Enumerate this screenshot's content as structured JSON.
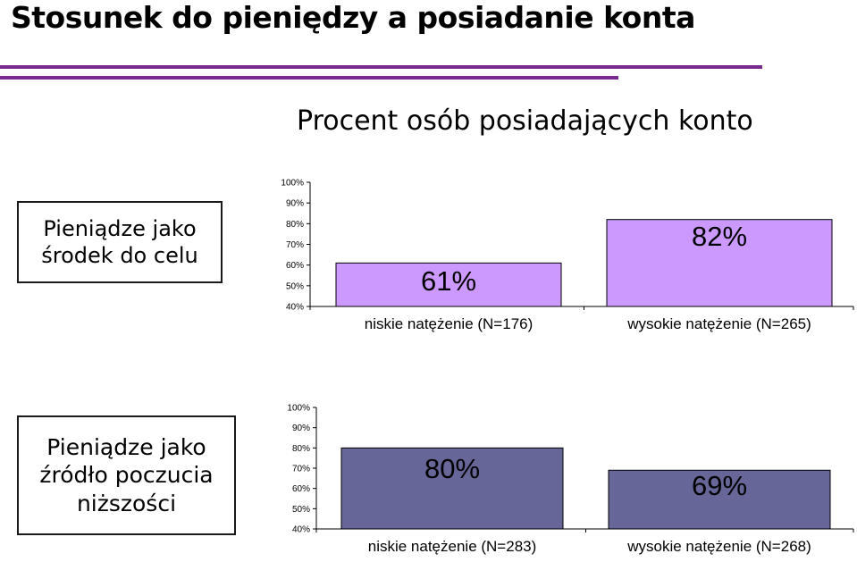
{
  "slide": {
    "title": "Stosunek do pieniędzy a posiadanie konta",
    "accent_color": "#7a2a8f"
  },
  "chart_heading": "Procent osób posiadających konto",
  "groups": [
    "Pieniądze jako środek do celu",
    "Pieniądze jako źródło poczucia niższości"
  ],
  "chart_data": [
    {
      "type": "bar",
      "categories": [
        "niskie natężenie (N=176)",
        "wysokie natężenie (N=265)"
      ],
      "values": [
        61,
        82
      ],
      "data_labels": [
        "61%",
        "82%"
      ],
      "ylim": [
        40,
        100
      ],
      "yticks": [
        "40%",
        "50%",
        "60%",
        "70%",
        "80%",
        "90%",
        "100%"
      ],
      "bar_color": "#cc99ff",
      "grid": false
    },
    {
      "type": "bar",
      "categories": [
        "niskie natężenie (N=283)",
        "wysokie natężenie (N=268)"
      ],
      "values": [
        80,
        69
      ],
      "data_labels": [
        "80%",
        "69%"
      ],
      "ylim": [
        40,
        100
      ],
      "yticks": [
        "40%",
        "50%",
        "60%",
        "70%",
        "80%",
        "90%",
        "100%"
      ],
      "bar_color": "#666699",
      "grid": false
    }
  ]
}
